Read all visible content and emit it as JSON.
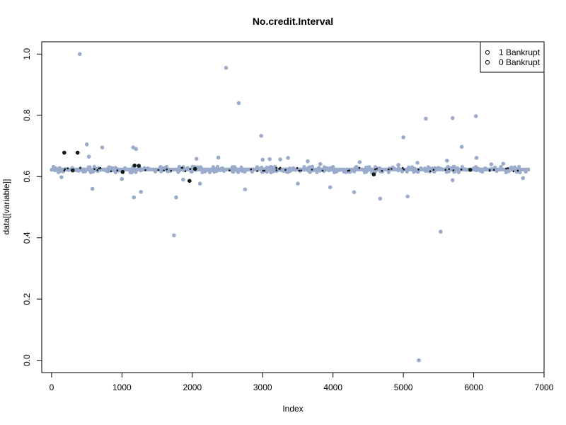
{
  "chart_data": {
    "type": "scatter",
    "title": "No.credit.Interval",
    "xlabel": "Index",
    "ylabel": "data[[variable]]",
    "xlim": [
      -140,
      7000
    ],
    "ylim": [
      -0.04,
      1.04
    ],
    "xticks": [
      0,
      1000,
      2000,
      3000,
      4000,
      5000,
      6000,
      7000
    ],
    "yticks": [
      0.0,
      0.2,
      0.4,
      0.6,
      0.8,
      1.0
    ],
    "xtick_labels": [
      "0",
      "1000",
      "2000",
      "3000",
      "4000",
      "5000",
      "6000",
      "7000"
    ],
    "ytick_labels": [
      "0.0",
      "0.2",
      "0.4",
      "0.6",
      "0.8",
      "1.0"
    ],
    "grid": false,
    "legend_position": "top-right",
    "legend": [
      {
        "label": "1 Bankrupt",
        "marker": "o"
      },
      {
        "label": "0 Bankrupt",
        "marker": "o"
      }
    ],
    "band": {
      "y_center": 0.623,
      "y_spread": 0.006,
      "x_from": 0,
      "x_to": 6800
    },
    "series": [
      {
        "name": "0 Bankrupt",
        "color": "#9aabcb",
        "points": [
          [
            400,
            1.0
          ],
          [
            2480,
            0.955
          ],
          [
            2660,
            0.84
          ],
          [
            2980,
            0.733
          ],
          [
            5000,
            0.728
          ],
          [
            5320,
            0.789
          ],
          [
            5700,
            0.791
          ],
          [
            6030,
            0.797
          ],
          [
            500,
            0.705
          ],
          [
            720,
            0.695
          ],
          [
            1160,
            0.695
          ],
          [
            1200,
            0.69
          ],
          [
            5830,
            0.697
          ],
          [
            530,
            0.665
          ],
          [
            2060,
            0.658
          ],
          [
            2370,
            0.662
          ],
          [
            3000,
            0.655
          ],
          [
            3100,
            0.657
          ],
          [
            3250,
            0.656
          ],
          [
            3360,
            0.661
          ],
          [
            6040,
            0.661
          ],
          [
            5620,
            0.652
          ],
          [
            5200,
            0.645
          ],
          [
            580,
            0.56
          ],
          [
            1000,
            0.592
          ],
          [
            1270,
            0.55
          ],
          [
            1170,
            0.532
          ],
          [
            1770,
            0.532
          ],
          [
            2110,
            0.577
          ],
          [
            2750,
            0.558
          ],
          [
            3500,
            0.577
          ],
          [
            3960,
            0.565
          ],
          [
            4300,
            0.549
          ],
          [
            4670,
            0.528
          ],
          [
            5060,
            0.535
          ],
          [
            5700,
            0.588
          ],
          [
            6700,
            0.595
          ],
          [
            1740,
            0.408
          ],
          [
            5530,
            0.42
          ],
          [
            5220,
            0.0
          ],
          [
            140,
            0.598
          ],
          [
            1870,
            0.59
          ],
          [
            3640,
            0.65
          ],
          [
            4380,
            0.647
          ],
          [
            6250,
            0.64
          ],
          [
            6420,
            0.642
          ],
          [
            4930,
            0.638
          ],
          [
            3820,
            0.641
          ]
        ]
      },
      {
        "name": "1 Bankrupt",
        "color": "#0a1a14",
        "points": [
          [
            180,
            0.678
          ],
          [
            370,
            0.678
          ],
          [
            1180,
            0.636
          ],
          [
            1240,
            0.635
          ],
          [
            1960,
            0.586
          ],
          [
            4580,
            0.607
          ],
          [
            1010,
            0.615
          ],
          [
            2040,
            0.625
          ],
          [
            300,
            0.62
          ],
          [
            5950,
            0.622
          ]
        ]
      }
    ]
  }
}
